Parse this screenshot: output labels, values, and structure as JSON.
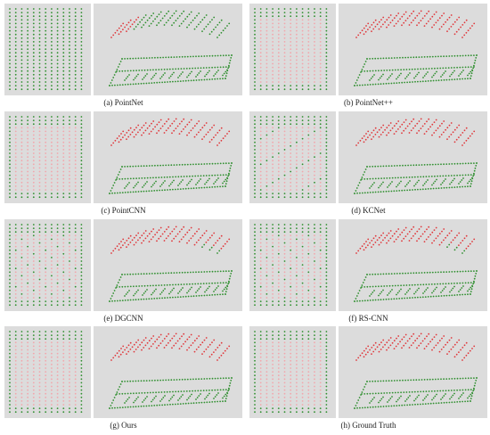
{
  "figure": {
    "colors": {
      "background": "#dcdcdc",
      "separator": "#ffffff",
      "green_points": "#2f8f2f",
      "red_points": "#e0383c",
      "pink_points": "#f2a6ac"
    },
    "panels": [
      {
        "caption": "(a) PointNet",
        "variant": "pointnet"
      },
      {
        "caption": "(b) PointNet++",
        "variant": "pointnet2"
      },
      {
        "caption": "(c) PointCNN",
        "variant": "pointcnn"
      },
      {
        "caption": "(d) KCNet",
        "variant": "kcnet"
      },
      {
        "caption": "(e) DGCNN",
        "variant": "dgcnn"
      },
      {
        "caption": "(f) RS-CNN",
        "variant": "rscnn"
      },
      {
        "caption": "(g) Ours",
        "variant": "ours"
      },
      {
        "caption": "(h) Ground Truth",
        "variant": "gt"
      }
    ]
  }
}
